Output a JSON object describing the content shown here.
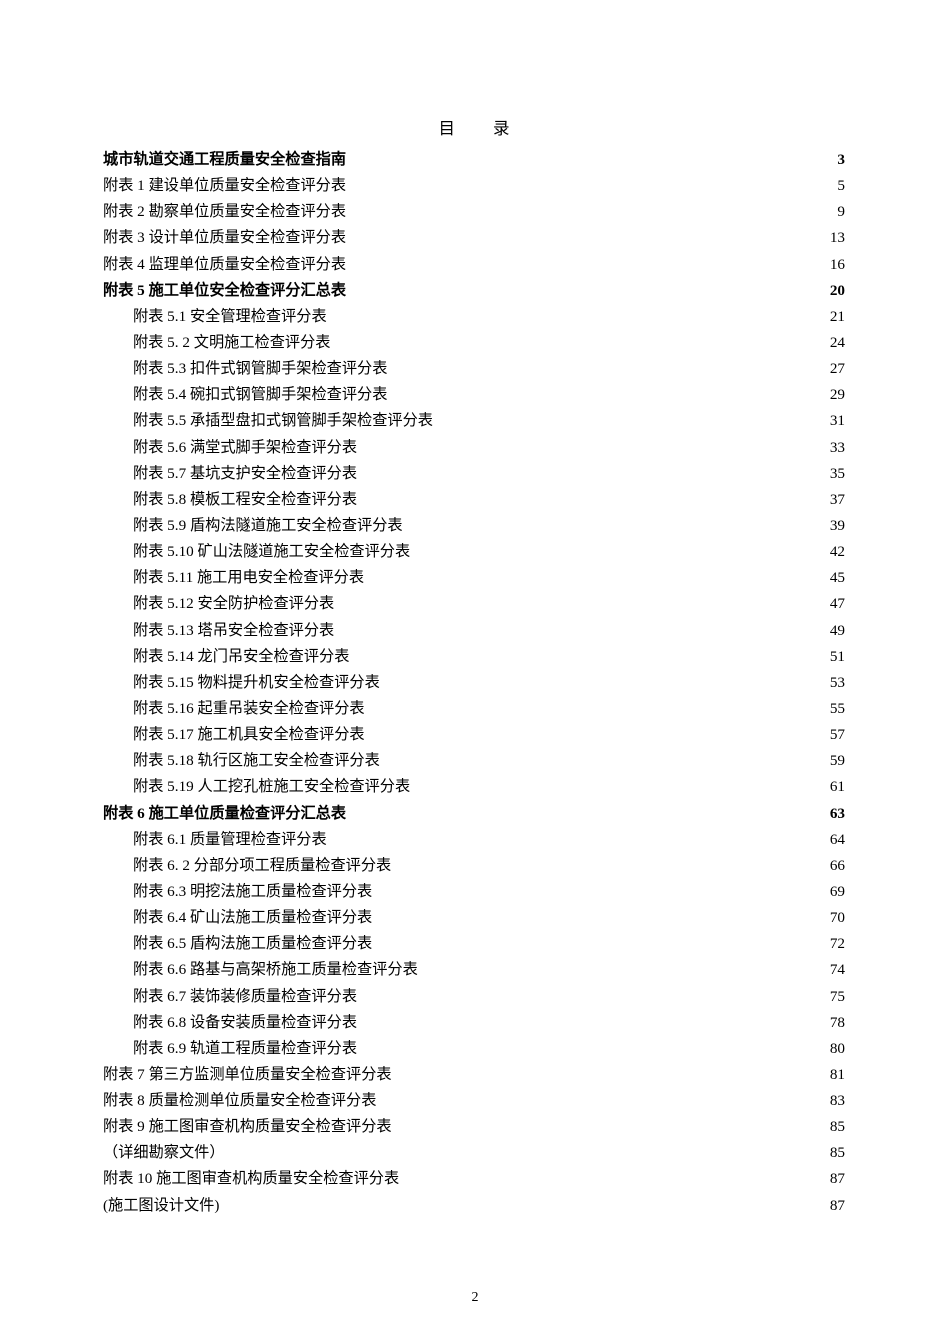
{
  "title": "目录",
  "page_number": "2",
  "entries": [
    {
      "label": "城市轨道交通工程质量安全检查指南",
      "page": "3",
      "indent": 0,
      "bold": true
    },
    {
      "label": "附表 1 建设单位质量安全检查评分表",
      "page": "5",
      "indent": 0,
      "bold": false
    },
    {
      "label": "附表 2 勘察单位质量安全检查评分表",
      "page": "9",
      "indent": 0,
      "bold": false
    },
    {
      "label": "附表 3  设计单位质量安全检查评分表",
      "page": "13",
      "indent": 0,
      "bold": false
    },
    {
      "label": "附表 4    监理单位质量安全检查评分表",
      "page": "16",
      "indent": 0,
      "bold": false
    },
    {
      "label": "附表 5    施工单位安全检查评分汇总表",
      "page": "20",
      "indent": 0,
      "bold": true
    },
    {
      "label": "附表 5.1  安全管理检查评分表",
      "page": "21",
      "indent": 1,
      "bold": false
    },
    {
      "label": "附表 5. 2    文明施工检查评分表",
      "page": "24",
      "indent": 1,
      "bold": false
    },
    {
      "label": "附表 5.3  扣件式钢管脚手架检查评分表",
      "page": "27",
      "indent": 1,
      "bold": false
    },
    {
      "label": "附表 5.4  碗扣式钢管脚手架检查评分表",
      "page": "29",
      "indent": 1,
      "bold": false
    },
    {
      "label": "附表 5.5  承插型盘扣式钢管脚手架检查评分表",
      "page": "31",
      "indent": 1,
      "bold": false
    },
    {
      "label": "附表 5.6  满堂式脚手架检查评分表",
      "page": "33",
      "indent": 1,
      "bold": false
    },
    {
      "label": "附表 5.7  基坑支护安全检查评分表",
      "page": "35",
      "indent": 1,
      "bold": false
    },
    {
      "label": "附表 5.8  模板工程安全检查评分表",
      "page": "37",
      "indent": 1,
      "bold": false
    },
    {
      "label": "附表 5.9  盾构法隧道施工安全检查评分表",
      "page": "39",
      "indent": 1,
      "bold": false
    },
    {
      "label": "附表 5.10  矿山法隧道施工安全检查评分表",
      "page": "42",
      "indent": 1,
      "bold": false
    },
    {
      "label": "附表 5.11  施工用电安全检查评分表",
      "page": "45",
      "indent": 1,
      "bold": false
    },
    {
      "label": "附表 5.12  安全防护检查评分表",
      "page": "47",
      "indent": 1,
      "bold": false
    },
    {
      "label": "附表 5.13  塔吊安全检查评分表",
      "page": "49",
      "indent": 1,
      "bold": false
    },
    {
      "label": "附表 5.14  龙门吊安全检查评分表",
      "page": "51",
      "indent": 1,
      "bold": false
    },
    {
      "label": "附表 5.15  物料提升机安全检查评分表",
      "page": "53",
      "indent": 1,
      "bold": false
    },
    {
      "label": "附表 5.16  起重吊装安全检查评分表",
      "page": "55",
      "indent": 1,
      "bold": false
    },
    {
      "label": "附表 5.17  施工机具安全检查评分表",
      "page": "57",
      "indent": 1,
      "bold": false
    },
    {
      "label": "附表 5.18  轨行区施工安全检查评分表",
      "page": "59",
      "indent": 1,
      "bold": false
    },
    {
      "label": "附表 5.19  人工挖孔桩施工安全检查评分表",
      "page": "61",
      "indent": 1,
      "bold": false
    },
    {
      "label": "附表 6    施工单位质量检查评分汇总表",
      "page": "63",
      "indent": 0,
      "bold": true
    },
    {
      "label": "附表 6.1  质量管理检查评分表",
      "page": "64",
      "indent": 1,
      "bold": false
    },
    {
      "label": "附表 6. 2    分部分项工程质量检查评分表",
      "page": "66",
      "indent": 1,
      "bold": false
    },
    {
      "label": "附表 6.3  明挖法施工质量检查评分表",
      "page": "69",
      "indent": 1,
      "bold": false
    },
    {
      "label": "附表 6.4  矿山法施工质量检查评分表",
      "page": "70",
      "indent": 1,
      "bold": false
    },
    {
      "label": "附表 6.5  盾构法施工质量检查评分表",
      "page": "72",
      "indent": 1,
      "bold": false
    },
    {
      "label": "附表 6.6  路基与高架桥施工质量检查评分表",
      "page": "74",
      "indent": 1,
      "bold": false
    },
    {
      "label": "附表 6.7  装饰装修质量检查评分表",
      "page": "75",
      "indent": 1,
      "bold": false
    },
    {
      "label": "附表 6.8  设备安装质量检查评分表",
      "page": "78",
      "indent": 1,
      "bold": false
    },
    {
      "label": "附表 6.9  轨道工程质量检查评分表",
      "page": "80",
      "indent": 1,
      "bold": false
    },
    {
      "label": "附表 7 第三方监测单位质量安全检查评分表",
      "page": "81",
      "indent": 0,
      "bold": false
    },
    {
      "label": "附表 8 质量检测单位质量安全检查评分表",
      "page": "83",
      "indent": 0,
      "bold": false
    },
    {
      "label": "附表 9 施工图审查机构质量安全检查评分表",
      "page": "85",
      "indent": 0,
      "bold": false
    },
    {
      "label": "（详细勘察文件）",
      "page": "85",
      "indent": 0,
      "bold": false
    },
    {
      "label": "附表 10    施工图审查机构质量安全检查评分表",
      "page": "87",
      "indent": 0,
      "bold": false
    },
    {
      "label": "(施工图设计文件)",
      "page": "87",
      "indent": 0,
      "bold": false
    }
  ]
}
